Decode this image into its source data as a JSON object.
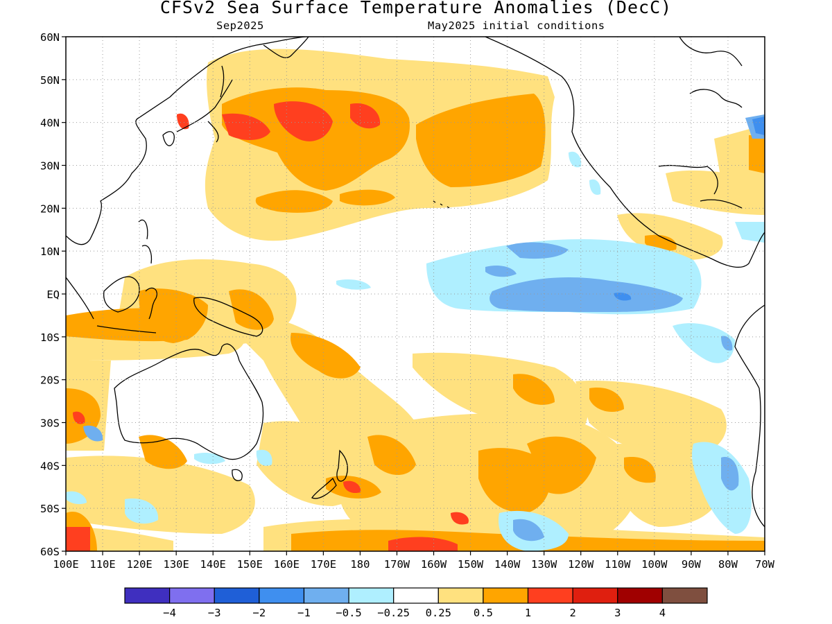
{
  "title": "CFSv2 Sea Surface Temperature Anomalies (DecC)",
  "subtitle_left": "Sep2025",
  "subtitle_right": "May2025 initial conditions",
  "map": {
    "lon_range": [
      "100E",
      "70W"
    ],
    "lat_range": [
      "60S",
      "60N"
    ],
    "lat_labels": [
      "60N",
      "50N",
      "40N",
      "30N",
      "20N",
      "10N",
      "EQ",
      "10S",
      "20S",
      "30S",
      "40S",
      "50S",
      "60S"
    ],
    "lon_labels": [
      "100E",
      "110E",
      "120E",
      "130E",
      "140E",
      "150E",
      "160E",
      "170E",
      "180",
      "170W",
      "160W",
      "150W",
      "140W",
      "130W",
      "120W",
      "110W",
      "100W",
      "90W",
      "80W",
      "70W"
    ],
    "grid": true
  },
  "colorbar": {
    "colors": [
      "#3f2fbf",
      "#7f6fef",
      "#1f5fd7",
      "#3f8fef",
      "#6fafef",
      "#afefff",
      "#ffffff",
      "#ffe17f",
      "#ffa500",
      "#ff3f1f",
      "#df1f0f",
      "#a00000",
      "#7f4f3f"
    ],
    "labels": [
      "−4",
      "−3",
      "−2",
      "−1",
      "−0.5",
      "−0.25",
      "0.25",
      "0.5",
      "1",
      "2",
      "3",
      "4"
    ]
  }
}
